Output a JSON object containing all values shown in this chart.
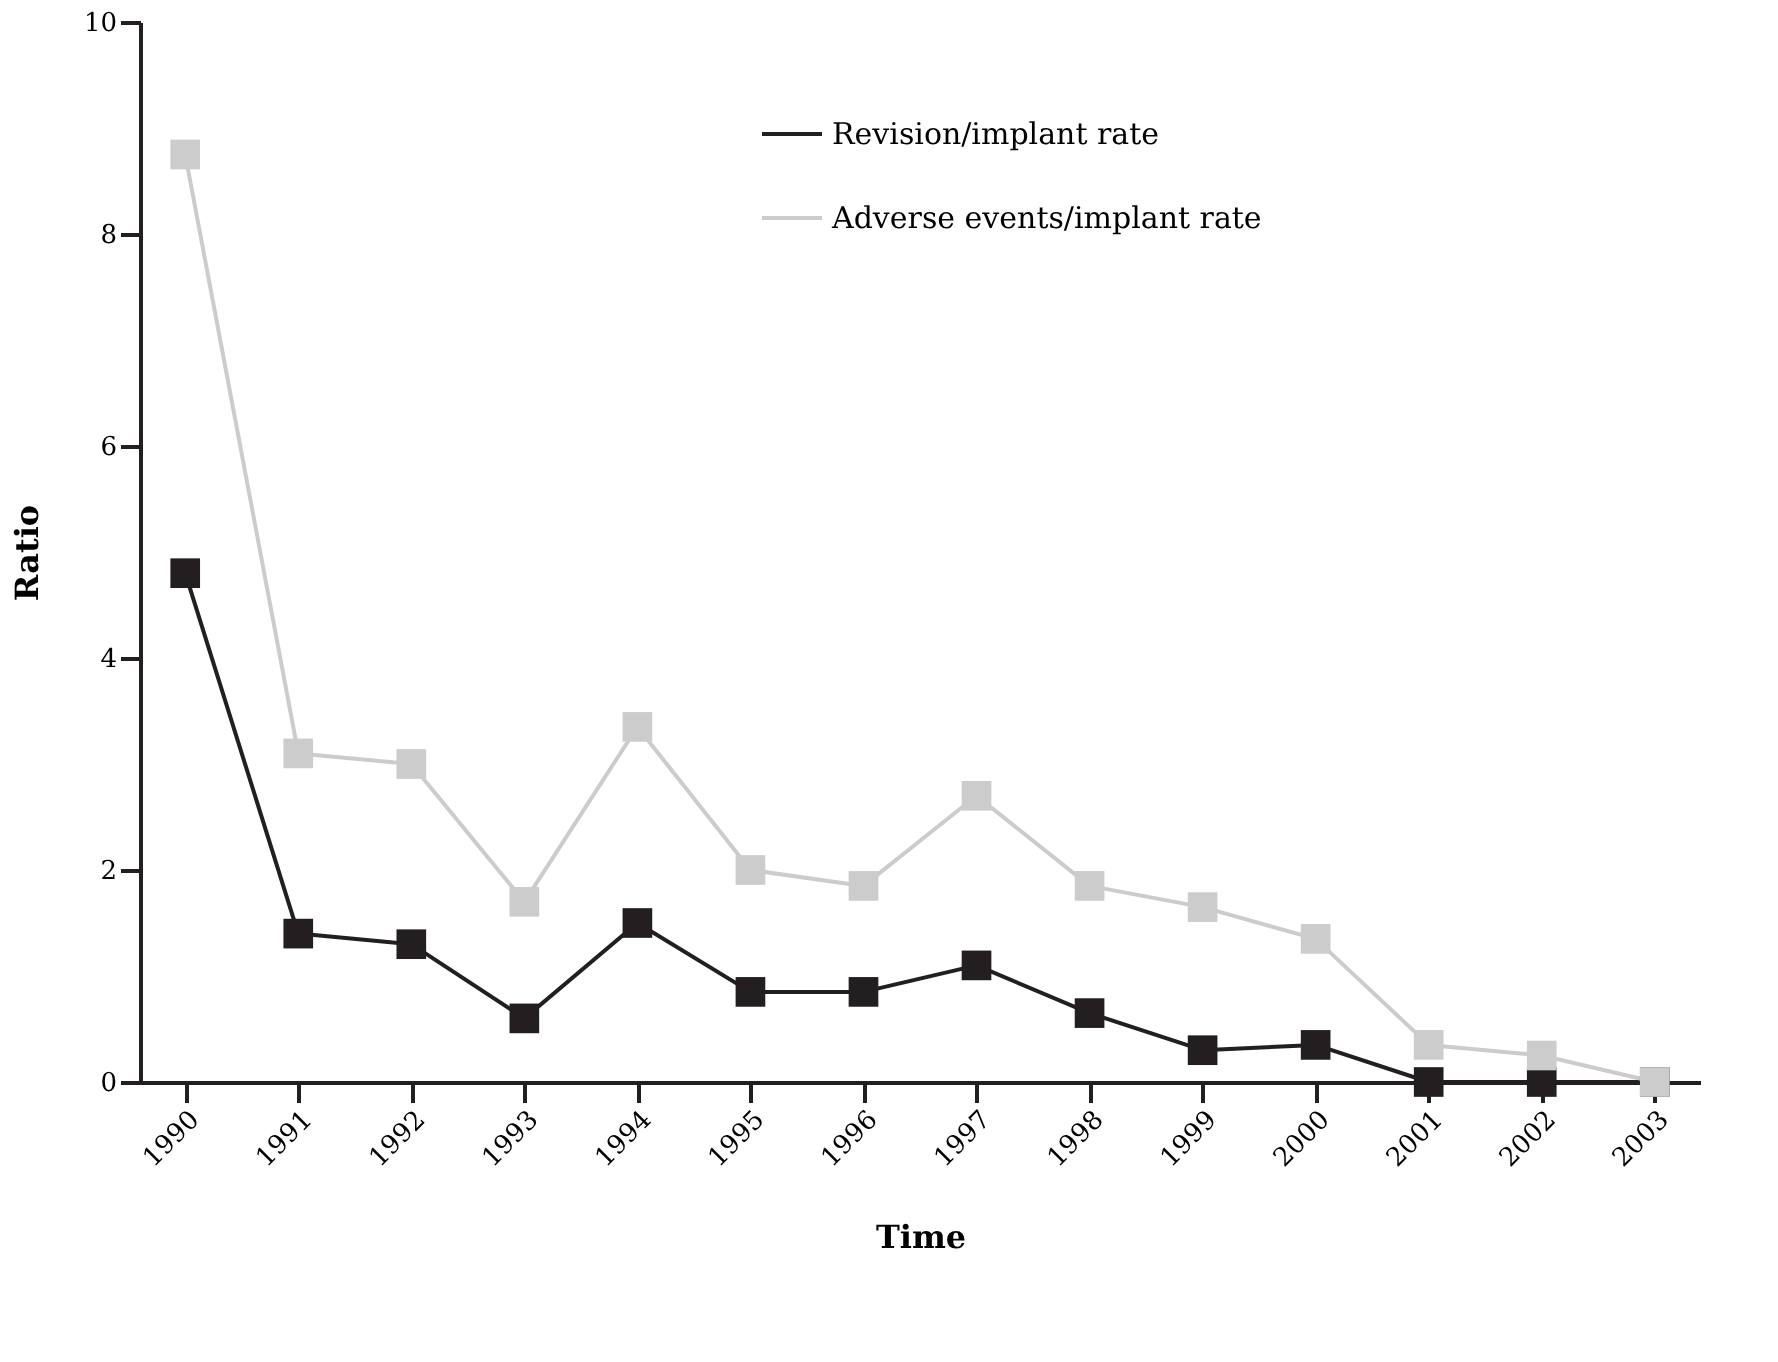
{
  "chart_data": {
    "type": "line",
    "xlabel": "Time",
    "ylabel": "Ratio",
    "categories": [
      "1990",
      "1991",
      "1992",
      "1993",
      "1994",
      "1995",
      "1996",
      "1997",
      "1998",
      "1999",
      "2000",
      "2001",
      "2002",
      "2003"
    ],
    "series": [
      {
        "name": "Revision/implant rate",
        "color": "#231f20",
        "values": [
          4.8,
          1.4,
          1.3,
          0.6,
          1.5,
          0.85,
          0.85,
          1.1,
          0.65,
          0.3,
          0.35,
          0,
          0,
          0
        ]
      },
      {
        "name": "Adverse events/implant rate",
        "color": "#cccccc",
        "values": [
          8.75,
          3.1,
          3.0,
          1.7,
          3.35,
          2.0,
          1.85,
          2.7,
          1.85,
          1.65,
          1.35,
          0.35,
          0.25,
          0
        ]
      }
    ],
    "ylim": [
      0,
      10
    ],
    "yticks": [
      0,
      2,
      4,
      6,
      8,
      10
    ],
    "grid": false,
    "legend": "top right",
    "marker": "square",
    "line_style": "solid"
  }
}
